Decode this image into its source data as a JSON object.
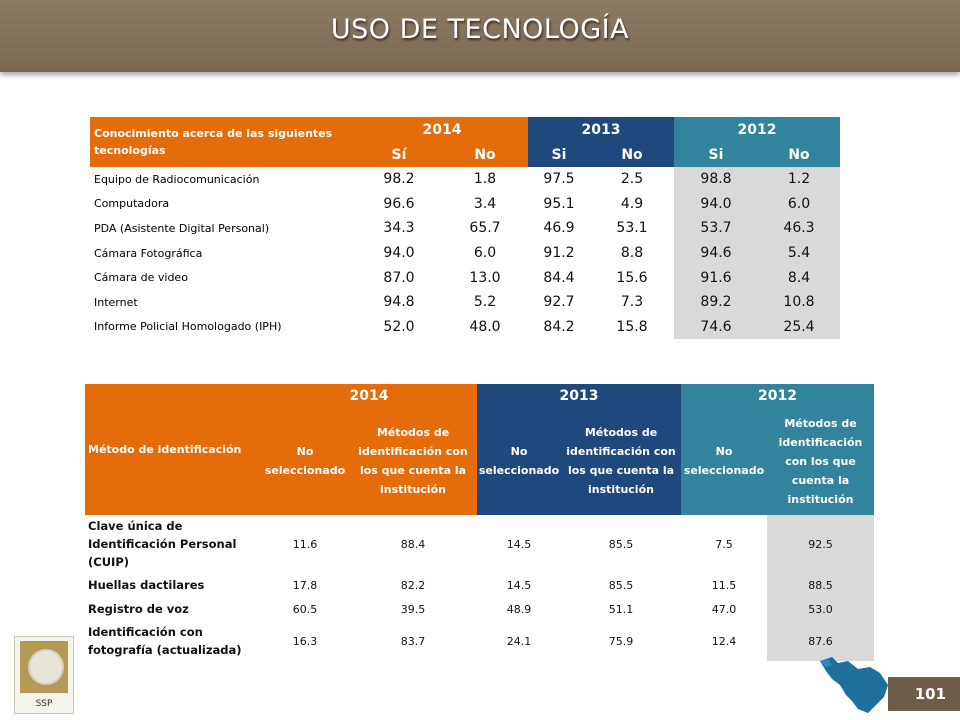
{
  "header": {
    "title": "USO DE TECNOLOGÍA"
  },
  "table1": {
    "label": "Conocimiento acerca de las siguientes tecnologías",
    "years": [
      "2014",
      "2013",
      "2012"
    ],
    "subheaders": [
      "Sí",
      "No",
      "Si",
      "No",
      "Si",
      "No"
    ],
    "rows": [
      {
        "label": "Equipo de Radiocomunicación",
        "values": [
          "98.2",
          "1.8",
          "97.5",
          "2.5",
          "98.8",
          "1.2"
        ]
      },
      {
        "label": "Computadora",
        "values": [
          "96.6",
          "3.4",
          "95.1",
          "4.9",
          "94.0",
          "6.0"
        ]
      },
      {
        "label": "PDA (Asistente Digital Personal)",
        "values": [
          "34.3",
          "65.7",
          "46.9",
          "53.1",
          "53.7",
          "46.3"
        ]
      },
      {
        "label": "Cámara Fotográfica",
        "values": [
          "94.0",
          "6.0",
          "91.2",
          "8.8",
          "94.6",
          "5.4"
        ]
      },
      {
        "label": "Cámara de video",
        "values": [
          "87.0",
          "13.0",
          "84.4",
          "15.6",
          "91.6",
          "8.4"
        ]
      },
      {
        "label": "Internet",
        "values": [
          "94.8",
          "5.2",
          "92.7",
          "7.3",
          "89.2",
          "10.8"
        ]
      },
      {
        "label": "Informe Policial Homologado (IPH)",
        "values": [
          "52.0",
          "48.0",
          "84.2",
          "15.8",
          "74.6",
          "25.4"
        ]
      }
    ]
  },
  "table2": {
    "label": "Método de identificación",
    "years": [
      "2014",
      "2013",
      "2012"
    ],
    "subheaders": [
      "No seleccionado",
      "Métodos de identificación con los que cuenta la institución",
      "No seleccionado",
      "Métodos de identificación con los que cuenta la institución",
      "No seleccionado",
      "Métodos de identificación con los que cuenta la institución"
    ],
    "rows": [
      {
        "label": "Clave única de Identificación Personal (CUIP)",
        "values": [
          "11.6",
          "88.4",
          "14.5",
          "85.5",
          "7.5",
          "92.5"
        ]
      },
      {
        "label": "Huellas dactilares",
        "values": [
          "17.8",
          "82.2",
          "14.5",
          "85.5",
          "11.5",
          "88.5"
        ]
      },
      {
        "label": "Registro de voz",
        "values": [
          "60.5",
          "39.5",
          "48.9",
          "51.1",
          "47.0",
          "53.0"
        ]
      },
      {
        "label": "Identificación con fotografía (actualizada)",
        "values": [
          "16.3",
          "83.7",
          "24.1",
          "75.9",
          "12.4",
          "87.6"
        ]
      }
    ]
  },
  "footer": {
    "logo_text": "SSP",
    "page_number": "101"
  },
  "colors": {
    "orange": "#e46c0a",
    "navy": "#1f497d",
    "teal": "#31849b",
    "brown": "#7a6851",
    "gray": "#d9d9d9"
  }
}
